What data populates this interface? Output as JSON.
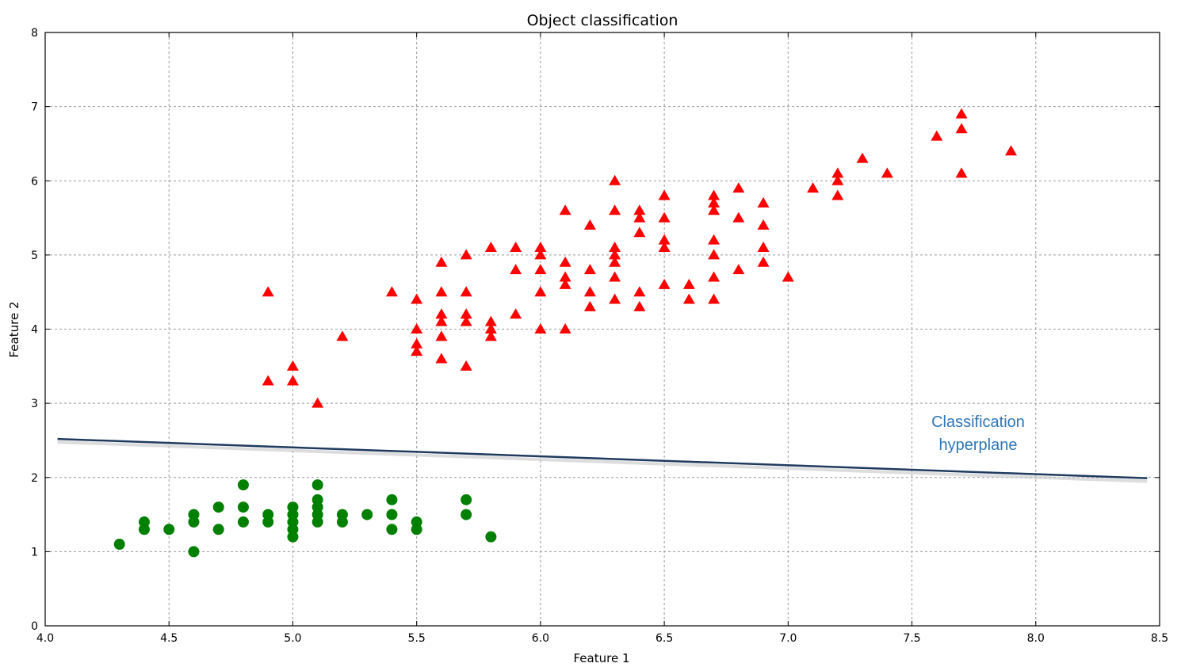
{
  "chart_data": {
    "type": "scatter",
    "title": "Object classification",
    "xlabel": "Feature 1",
    "ylabel": "Feature 2",
    "xlim": [
      4.0,
      8.5
    ],
    "ylim": [
      0,
      8
    ],
    "grid": true,
    "x_ticks": [
      "4.0",
      "4.5",
      "5.0",
      "5.5",
      "6.0",
      "6.5",
      "7.0",
      "7.5",
      "8.0",
      "8.5"
    ],
    "y_ticks": [
      "0",
      "1",
      "2",
      "3",
      "4",
      "5",
      "6",
      "7",
      "8"
    ],
    "series": [
      {
        "marker": "triangle",
        "color": "#ff0000",
        "points": [
          [
            4.9,
            4.5
          ],
          [
            4.9,
            3.3
          ],
          [
            5.0,
            3.5
          ],
          [
            5.0,
            3.3
          ],
          [
            5.1,
            3.0
          ],
          [
            5.2,
            3.9
          ],
          [
            5.4,
            4.5
          ],
          [
            5.5,
            4.4
          ],
          [
            5.5,
            4.0
          ],
          [
            5.5,
            3.8
          ],
          [
            5.5,
            3.7
          ],
          [
            5.6,
            4.9
          ],
          [
            5.6,
            4.5
          ],
          [
            5.6,
            4.2
          ],
          [
            5.6,
            4.1
          ],
          [
            5.6,
            3.9
          ],
          [
            5.6,
            3.6
          ],
          [
            5.7,
            5.0
          ],
          [
            5.7,
            4.5
          ],
          [
            5.7,
            4.2
          ],
          [
            5.7,
            4.1
          ],
          [
            5.7,
            3.5
          ],
          [
            5.8,
            5.1
          ],
          [
            5.8,
            4.1
          ],
          [
            5.8,
            4.0
          ],
          [
            5.8,
            3.9
          ],
          [
            5.9,
            5.1
          ],
          [
            5.9,
            4.8
          ],
          [
            5.9,
            4.2
          ],
          [
            6.0,
            5.1
          ],
          [
            6.0,
            5.0
          ],
          [
            6.0,
            4.8
          ],
          [
            6.0,
            4.5
          ],
          [
            6.0,
            4.0
          ],
          [
            6.1,
            5.6
          ],
          [
            6.1,
            4.9
          ],
          [
            6.1,
            4.7
          ],
          [
            6.1,
            4.6
          ],
          [
            6.1,
            4.0
          ],
          [
            6.2,
            5.4
          ],
          [
            6.2,
            4.8
          ],
          [
            6.2,
            4.5
          ],
          [
            6.2,
            4.3
          ],
          [
            6.3,
            6.0
          ],
          [
            6.3,
            5.6
          ],
          [
            6.3,
            5.1
          ],
          [
            6.3,
            5.0
          ],
          [
            6.3,
            4.9
          ],
          [
            6.3,
            4.7
          ],
          [
            6.3,
            4.4
          ],
          [
            6.4,
            5.6
          ],
          [
            6.4,
            5.5
          ],
          [
            6.4,
            5.3
          ],
          [
            6.4,
            4.5
          ],
          [
            6.4,
            4.3
          ],
          [
            6.5,
            5.8
          ],
          [
            6.5,
            5.5
          ],
          [
            6.5,
            5.2
          ],
          [
            6.5,
            5.1
          ],
          [
            6.5,
            4.6
          ],
          [
            6.6,
            4.6
          ],
          [
            6.6,
            4.4
          ],
          [
            6.7,
            5.8
          ],
          [
            6.7,
            5.7
          ],
          [
            6.7,
            5.6
          ],
          [
            6.7,
            5.2
          ],
          [
            6.7,
            5.0
          ],
          [
            6.7,
            4.7
          ],
          [
            6.7,
            4.4
          ],
          [
            6.8,
            5.9
          ],
          [
            6.8,
            5.5
          ],
          [
            6.8,
            4.8
          ],
          [
            6.9,
            5.7
          ],
          [
            6.9,
            5.4
          ],
          [
            6.9,
            5.1
          ],
          [
            6.9,
            4.9
          ],
          [
            7.0,
            4.7
          ],
          [
            7.1,
            5.9
          ],
          [
            7.2,
            6.1
          ],
          [
            7.2,
            6.0
          ],
          [
            7.2,
            5.8
          ],
          [
            7.3,
            6.3
          ],
          [
            7.4,
            6.1
          ],
          [
            7.6,
            6.6
          ],
          [
            7.7,
            6.9
          ],
          [
            7.7,
            6.7
          ],
          [
            7.7,
            6.1
          ],
          [
            7.9,
            6.4
          ]
        ]
      },
      {
        "marker": "circle",
        "color": "#008000",
        "points": [
          [
            4.3,
            1.1
          ],
          [
            4.4,
            1.4
          ],
          [
            4.4,
            1.3
          ],
          [
            4.5,
            1.3
          ],
          [
            4.6,
            1.5
          ],
          [
            4.6,
            1.4
          ],
          [
            4.6,
            1.0
          ],
          [
            4.7,
            1.6
          ],
          [
            4.7,
            1.3
          ],
          [
            4.8,
            1.9
          ],
          [
            4.8,
            1.6
          ],
          [
            4.8,
            1.4
          ],
          [
            4.9,
            1.5
          ],
          [
            4.9,
            1.4
          ],
          [
            5.0,
            1.6
          ],
          [
            5.0,
            1.5
          ],
          [
            5.0,
            1.4
          ],
          [
            5.0,
            1.3
          ],
          [
            5.0,
            1.2
          ],
          [
            5.1,
            1.9
          ],
          [
            5.1,
            1.7
          ],
          [
            5.1,
            1.6
          ],
          [
            5.1,
            1.5
          ],
          [
            5.1,
            1.4
          ],
          [
            5.2,
            1.5
          ],
          [
            5.2,
            1.4
          ],
          [
            5.3,
            1.5
          ],
          [
            5.4,
            1.7
          ],
          [
            5.4,
            1.5
          ],
          [
            5.4,
            1.3
          ],
          [
            5.5,
            1.4
          ],
          [
            5.5,
            1.3
          ],
          [
            5.7,
            1.7
          ],
          [
            5.7,
            1.5
          ],
          [
            5.8,
            1.2
          ]
        ]
      }
    ],
    "hyperplane": {
      "color": "#1f3a5f",
      "start": [
        4.05,
        2.52
      ],
      "end": [
        8.45,
        1.99
      ]
    },
    "annotation": {
      "lines": [
        "Classification",
        "hyperplane"
      ],
      "color": "#2e75b6"
    }
  }
}
